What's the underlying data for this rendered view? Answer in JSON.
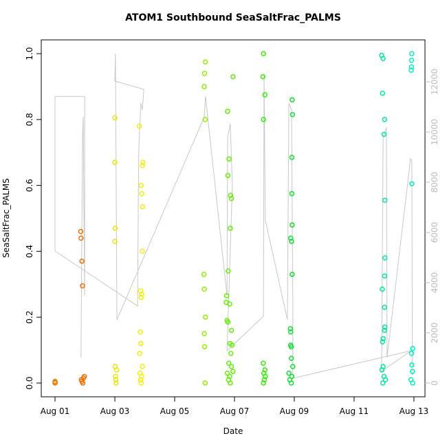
{
  "chart_data": {
    "type": "scatter",
    "title": "ATOM1 Southbound SeaSaltFrac_PALMS",
    "xlabel": "Date",
    "ylabel": "SeaSaltFrac_PALMS",
    "xlim": [
      -0.46,
      12.37
    ],
    "xticks": [
      {
        "value": 0,
        "label": "Aug 01"
      },
      {
        "value": 2,
        "label": "Aug 03"
      },
      {
        "value": 4,
        "label": "Aug 05"
      },
      {
        "value": 6,
        "label": "Aug 07"
      },
      {
        "value": 8,
        "label": "Aug 09"
      },
      {
        "value": 10,
        "label": "Aug 11"
      },
      {
        "value": 12,
        "label": "Aug 13"
      }
    ],
    "ylim": [
      -0.0418,
      1.0418
    ],
    "yticks": [
      {
        "value": 0,
        "label": "0.0"
      },
      {
        "value": 0.2,
        "label": "0.2"
      },
      {
        "value": 0.4,
        "label": "0.4"
      },
      {
        "value": 0.6,
        "label": "0.6"
      },
      {
        "value": 0.8,
        "label": "0.8"
      },
      {
        "value": 1,
        "label": "1.0"
      }
    ],
    "y2lim": [
      -548,
      13671
    ],
    "y2ticks": [
      0,
      2000,
      4000,
      6000,
      8000,
      10000,
      12000
    ],
    "y2color": "#bbbbbb",
    "series": [
      {
        "color": "#f08000",
        "x": [
          0,
          0,
          0.01
        ],
        "values": [
          0.005,
          0.0,
          0.002
        ]
      },
      {
        "color": "#f07000",
        "x": [
          0.86,
          0.87,
          0.9,
          0.92,
          0.88,
          0.9,
          0.93,
          0.95,
          0.98
        ],
        "values": [
          0.46,
          0.44,
          0.37,
          0.295,
          0.01,
          0.005,
          0.0,
          0.015,
          0.02
        ]
      },
      {
        "color": "#e8e800",
        "x": [
          2.0,
          2.0,
          2.01,
          2.0,
          2.01,
          2.02,
          2.03,
          2.04,
          2.06
        ],
        "values": [
          0.805,
          0.67,
          0.47,
          0.43,
          0.05,
          0.02,
          0.01,
          0.0,
          0.04
        ]
      },
      {
        "color": "#f0f000",
        "x": [
          2.82,
          2.94,
          2.92,
          2.88,
          2.9,
          2.93,
          2.92,
          2.86,
          2.9,
          2.88,
          2.85,
          2.87,
          2.83,
          2.92,
          2.84,
          2.9,
          2.86,
          2.88
        ],
        "values": [
          0.78,
          0.67,
          0.66,
          0.6,
          0.575,
          0.535,
          0.4,
          0.28,
          0.27,
          0.26,
          0.155,
          0.12,
          0.09,
          0.05,
          0.03,
          0.02,
          0.01,
          0.0
        ]
      },
      {
        "color": "#90f000",
        "x": [
          5.03,
          5.0,
          4.99,
          5.02,
          4.98,
          4.99,
          5.03,
          4.99,
          5.0,
          5.02
        ],
        "values": [
          0.975,
          0.94,
          0.9,
          0.8,
          0.33,
          0.285,
          0.2,
          0.15,
          0.11,
          0.0
        ]
      },
      {
        "color": "#60f000",
        "x": [
          5.95,
          5.77,
          5.82,
          5.78,
          5.87,
          5.9,
          5.86,
          5.79,
          5.74,
          5.72,
          5.84,
          5.75,
          5.78,
          5.9,
          5.85,
          5.92,
          5.88,
          5.81,
          5.9,
          5.95,
          5.76,
          5.84,
          5.8,
          5.86
        ],
        "values": [
          0.93,
          0.825,
          0.68,
          0.63,
          0.57,
          0.56,
          0.47,
          0.34,
          0.265,
          0.245,
          0.24,
          0.19,
          0.185,
          0.16,
          0.12,
          0.115,
          0.09,
          0.06,
          0.05,
          0.035,
          0.03,
          0.02,
          0.01,
          0.0
        ]
      },
      {
        "color": "#30f000",
        "x": [
          6.97,
          6.95,
          7.02,
          6.97,
          6.96,
          7.02,
          6.98,
          7.03,
          7.0,
          6.97
        ],
        "values": [
          1.0,
          0.93,
          0.875,
          0.8,
          0.06,
          0.04,
          0.03,
          0.02,
          0.01,
          0.0
        ]
      },
      {
        "color": "#10e030",
        "x": [
          7.93,
          7.94,
          7.92,
          7.92,
          7.93,
          7.88,
          7.91,
          7.93,
          7.87,
          7.88,
          7.88,
          7.9,
          7.9,
          7.95,
          7.82,
          7.92,
          7.85,
          7.9
        ],
        "values": [
          0.86,
          0.815,
          0.685,
          0.575,
          0.48,
          0.44,
          0.43,
          0.33,
          0.165,
          0.155,
          0.115,
          0.11,
          0.075,
          0.05,
          0.03,
          0.02,
          0.01,
          0.0
        ]
      },
      {
        "color": "#00e8a0",
        "x": [
          10.92,
          10.97,
          10.95,
          11.02,
          11.0,
          11.03,
          11.03,
          11.02,
          10.94,
          11.02,
          11.03,
          11.02,
          10.97,
          10.95,
          10.97,
          10.93,
          11.0,
          11.05,
          10.96
        ],
        "values": [
          0.995,
          0.985,
          0.88,
          0.8,
          0.755,
          0.555,
          0.38,
          0.325,
          0.285,
          0.23,
          0.17,
          0.16,
          0.135,
          0.125,
          0.05,
          0.04,
          0.02,
          0.01,
          0.0
        ]
      },
      {
        "color": "#00f0c0",
        "x": [
          11.93,
          11.92,
          11.92,
          11.91,
          11.93,
          11.96,
          11.92,
          11.93,
          11.95,
          11.9,
          11.96
        ],
        "values": [
          1.0,
          0.98,
          0.96,
          0.95,
          0.605,
          0.105,
          0.09,
          0.055,
          0.035,
          0.01,
          0.0
        ]
      },
      {
        "type": "line",
        "axis": "y2",
        "color": "#c8c8c8",
        "x": [
          0.87,
          0.92,
          0.94,
          0.99,
          0.99,
          0,
          0,
          2.76,
          2.8,
          2.87,
          2.92,
          2.97,
          2.0,
          2.02,
          2.07,
          4.99,
          5.03,
          5.75,
          5.77,
          5.86,
          5.93,
          5.75,
          6.97,
          6.99,
          7.03,
          7.77,
          7.82,
          7.91,
          7.95,
          7.95,
          11.91,
          10.92,
          10.97,
          11.08,
          11.1,
          11.89,
          11.93,
          11.95
        ],
        "values": [
          1010,
          9780,
          10600,
          3480,
          11420,
          11420,
          5260,
          3070,
          9370,
          11150,
          10880,
          11700,
          12030,
          13120,
          2520,
          10600,
          11420,
          3480,
          9780,
          10330,
          7860,
          1290,
          2660,
          12250,
          6490,
          2520,
          11150,
          10880,
          3070,
          190,
          1290,
          470,
          9780,
          10190,
          1010,
          8960,
          8820,
          330
        ]
      }
    ]
  }
}
